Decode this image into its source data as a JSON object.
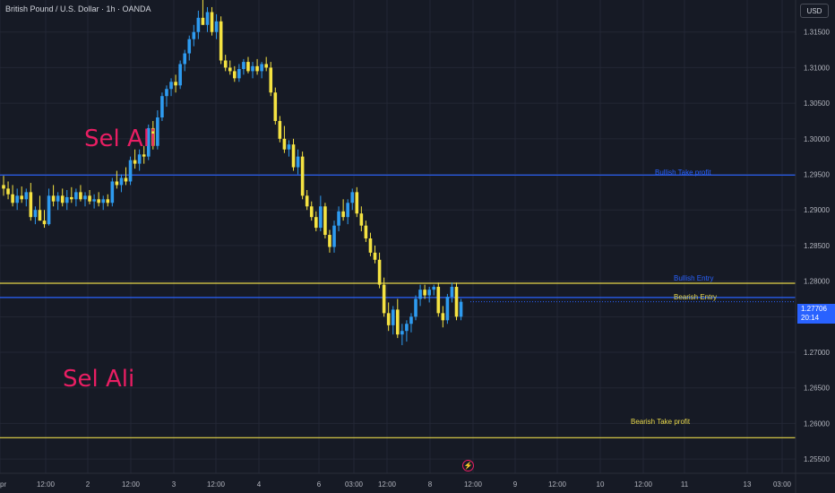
{
  "header": {
    "symbol_title": "British Pound / U.S. Dollar · 1h · OANDA",
    "currency_button": "USD"
  },
  "price_badge": {
    "price": "1.27706",
    "countdown": "20:14"
  },
  "watermarks": [
    "Sel Ali",
    "Sel Ali"
  ],
  "levels": [
    {
      "name": "Bullish Take profit",
      "price": 1.2949,
      "color": "#2962ff"
    },
    {
      "name": "Bullish Entry",
      "price": 1.2777,
      "color": "#2962ff"
    },
    {
      "name": "Bearish Entry",
      "price": 1.2797,
      "color": "#e8d84a"
    },
    {
      "name": "Bearish Take profit",
      "price": 1.258,
      "color": "#e8d84a"
    }
  ],
  "colors": {
    "background": "#161a25",
    "up_candle": "#2e9bf0",
    "down_candle": "#f5e342",
    "grid": "#232735",
    "axis_text": "#b2b5be"
  },
  "chart_data": {
    "type": "candlestick",
    "title": "British Pound / U.S. Dollar · 1h · OANDA",
    "ylim": [
      1.253,
      1.3195
    ],
    "y_ticks": [
      "1.25500",
      "1.26000",
      "1.26500",
      "1.27000",
      "1.27500",
      "1.28000",
      "1.28500",
      "1.29000",
      "1.29500",
      "1.30000",
      "1.30500",
      "1.31000",
      "1.31500"
    ],
    "x_ticks": [
      "pr",
      "12:00",
      "2",
      "12:00",
      "3",
      "12:00",
      "4",
      "6",
      "03:00",
      "12:00",
      "8",
      "12:00",
      "9",
      "12:00",
      "10",
      "12:00",
      "11",
      "13",
      "03:00"
    ],
    "grid": true,
    "legend": "none",
    "candles": [
      [
        1.2935,
        1.2948,
        1.292,
        1.293
      ],
      [
        1.293,
        1.294,
        1.2915,
        1.2922
      ],
      [
        1.2922,
        1.2935,
        1.2905,
        1.291
      ],
      [
        1.291,
        1.293,
        1.29,
        1.292
      ],
      [
        1.292,
        1.2933,
        1.291,
        1.2915
      ],
      [
        1.2915,
        1.293,
        1.2905,
        1.2925
      ],
      [
        1.2925,
        1.2938,
        1.2885,
        1.289
      ],
      [
        1.289,
        1.2905,
        1.288,
        1.29
      ],
      [
        1.29,
        1.292,
        1.2885,
        1.2885
      ],
      [
        1.2885,
        1.29,
        1.2875,
        1.288
      ],
      [
        1.288,
        1.293,
        1.2878,
        1.292
      ],
      [
        1.292,
        1.2935,
        1.2905,
        1.2912
      ],
      [
        1.2912,
        1.2925,
        1.29,
        1.292
      ],
      [
        1.292,
        1.293,
        1.2905,
        1.291
      ],
      [
        1.291,
        1.2928,
        1.29,
        1.2918
      ],
      [
        1.2918,
        1.2932,
        1.291,
        1.2915
      ],
      [
        1.2915,
        1.293,
        1.2905,
        1.2925
      ],
      [
        1.2925,
        1.2935,
        1.2912,
        1.2915
      ],
      [
        1.2915,
        1.2925,
        1.2905,
        1.292
      ],
      [
        1.292,
        1.2928,
        1.2908,
        1.2912
      ],
      [
        1.2912,
        1.2922,
        1.2902,
        1.2915
      ],
      [
        1.2915,
        1.2925,
        1.2905,
        1.291
      ],
      [
        1.291,
        1.292,
        1.29,
        1.2915
      ],
      [
        1.2915,
        1.2922,
        1.2905,
        1.291
      ],
      [
        1.291,
        1.2945,
        1.2905,
        1.294
      ],
      [
        1.294,
        1.2955,
        1.293,
        1.2935
      ],
      [
        1.2935,
        1.295,
        1.2925,
        1.2945
      ],
      [
        1.2945,
        1.296,
        1.2935,
        1.294
      ],
      [
        1.294,
        1.2975,
        1.2935,
        1.297
      ],
      [
        1.297,
        1.2985,
        1.2958,
        1.2965
      ],
      [
        1.2965,
        1.2985,
        1.2955,
        1.2978
      ],
      [
        1.2978,
        1.299,
        1.2965,
        1.2975
      ],
      [
        1.2975,
        1.302,
        1.297,
        1.3015
      ],
      [
        1.3015,
        1.3025,
        1.2985,
        1.299
      ],
      [
        1.299,
        1.304,
        1.2985,
        1.303
      ],
      [
        1.303,
        1.3065,
        1.3025,
        1.306
      ],
      [
        1.306,
        1.3075,
        1.3045,
        1.307
      ],
      [
        1.307,
        1.3085,
        1.306,
        1.308
      ],
      [
        1.308,
        1.309,
        1.3065,
        1.3075
      ],
      [
        1.3075,
        1.311,
        1.307,
        1.3105
      ],
      [
        1.3105,
        1.3125,
        1.3095,
        1.312
      ],
      [
        1.312,
        1.3145,
        1.311,
        1.314
      ],
      [
        1.314,
        1.316,
        1.313,
        1.315
      ],
      [
        1.315,
        1.318,
        1.314,
        1.317
      ],
      [
        1.317,
        1.3195,
        1.316,
        1.316
      ],
      [
        1.316,
        1.3185,
        1.315,
        1.3178
      ],
      [
        1.3178,
        1.3185,
        1.3145,
        1.315
      ],
      [
        1.315,
        1.3175,
        1.314,
        1.3165
      ],
      [
        1.3165,
        1.3172,
        1.3105,
        1.311
      ],
      [
        1.311,
        1.3118,
        1.3095,
        1.31
      ],
      [
        1.31,
        1.311,
        1.309,
        1.3095
      ],
      [
        1.3095,
        1.3102,
        1.308,
        1.3085
      ],
      [
        1.3085,
        1.3105,
        1.308,
        1.3098
      ],
      [
        1.3098,
        1.3112,
        1.309,
        1.3108
      ],
      [
        1.3108,
        1.3115,
        1.3092,
        1.3095
      ],
      [
        1.3095,
        1.3108,
        1.3085,
        1.3102
      ],
      [
        1.3102,
        1.3112,
        1.309,
        1.3095
      ],
      [
        1.3095,
        1.3108,
        1.3085,
        1.3105
      ],
      [
        1.3105,
        1.3115,
        1.3095,
        1.31
      ],
      [
        1.31,
        1.3108,
        1.306,
        1.3065
      ],
      [
        1.3065,
        1.3072,
        1.302,
        1.3025
      ],
      [
        1.3025,
        1.3032,
        1.2995,
        1.3
      ],
      [
        1.3,
        1.3018,
        1.298,
        1.2985
      ],
      [
        1.2985,
        1.2998,
        1.2975,
        1.2992
      ],
      [
        1.2992,
        1.3,
        1.2955,
        1.296
      ],
      [
        1.296,
        1.2985,
        1.295,
        1.2975
      ],
      [
        1.2975,
        1.2982,
        1.2915,
        1.292
      ],
      [
        1.292,
        1.2928,
        1.29,
        1.2905
      ],
      [
        1.2905,
        1.2912,
        1.2885,
        1.289
      ],
      [
        1.289,
        1.2898,
        1.287,
        1.2875
      ],
      [
        1.2875,
        1.292,
        1.287,
        1.2905
      ],
      [
        1.2905,
        1.291,
        1.286,
        1.2865
      ],
      [
        1.2865,
        1.2872,
        1.284,
        1.2848
      ],
      [
        1.2848,
        1.2885,
        1.284,
        1.2878
      ],
      [
        1.2878,
        1.2905,
        1.287,
        1.2898
      ],
      [
        1.2898,
        1.2915,
        1.2885,
        1.289
      ],
      [
        1.289,
        1.2915,
        1.288,
        1.291
      ],
      [
        1.291,
        1.293,
        1.29,
        1.2925
      ],
      [
        1.2925,
        1.2932,
        1.289,
        1.2895
      ],
      [
        1.2895,
        1.2905,
        1.287,
        1.2878
      ],
      [
        1.2878,
        1.2885,
        1.2855,
        1.286
      ],
      [
        1.286,
        1.2868,
        1.2835,
        1.284
      ],
      [
        1.284,
        1.285,
        1.2825,
        1.283
      ],
      [
        1.283,
        1.284,
        1.279,
        1.2795
      ],
      [
        1.2795,
        1.2805,
        1.275,
        1.2755
      ],
      [
        1.2755,
        1.277,
        1.273,
        1.2738
      ],
      [
        1.2738,
        1.2765,
        1.2725,
        1.276
      ],
      [
        1.276,
        1.2775,
        1.272,
        1.2725
      ],
      [
        1.2725,
        1.274,
        1.271,
        1.273
      ],
      [
        1.273,
        1.2745,
        1.2715,
        1.274
      ],
      [
        1.274,
        1.2755,
        1.2728,
        1.275
      ],
      [
        1.275,
        1.278,
        1.2745,
        1.2775
      ],
      [
        1.2775,
        1.2795,
        1.2765,
        1.2788
      ],
      [
        1.2788,
        1.2795,
        1.2775,
        1.278
      ],
      [
        1.278,
        1.2792,
        1.277,
        1.2788
      ],
      [
        1.2788,
        1.2795,
        1.278,
        1.2792
      ],
      [
        1.2792,
        1.2798,
        1.275,
        1.2755
      ],
      [
        1.2755,
        1.2765,
        1.2735,
        1.2745
      ],
      [
        1.2745,
        1.2782,
        1.274,
        1.2778
      ],
      [
        1.2778,
        1.2798,
        1.277,
        1.2792
      ],
      [
        1.2792,
        1.2798,
        1.2745,
        1.275
      ],
      [
        1.275,
        1.2775,
        1.2745,
        1.2771
      ]
    ]
  }
}
